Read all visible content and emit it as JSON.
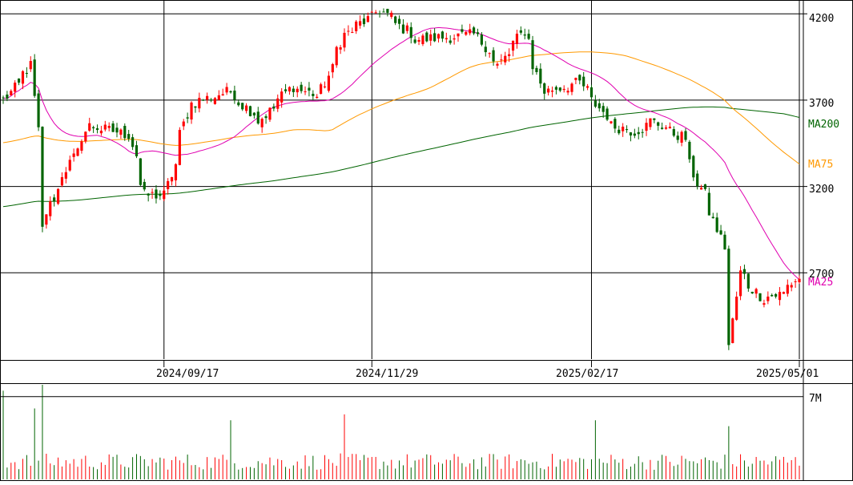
{
  "chart_data": [
    {
      "type": "candlestick",
      "title": "",
      "x_tick_labels": [
        "2024/09/17",
        "2024/11/29",
        "2025/02/17",
        "2025/05/01"
      ],
      "y_tick_labels": [
        "4200",
        "3700",
        "3200",
        "2700"
      ],
      "ylim": [
        2200,
        4280
      ],
      "grid": true,
      "colors": {
        "up": "#ff0000",
        "down": "#006400",
        "ma25": "#e000b0",
        "ma75": "#ff9900",
        "ma200": "#006400"
      },
      "ohlc_anchors": [
        {
          "date": "2024-07-22",
          "close": 3700
        },
        {
          "date": "2024-07-31",
          "close": 3900
        },
        {
          "date": "2024-08-05",
          "close": 2950
        },
        {
          "date": "2024-08-06",
          "close": 3050
        },
        {
          "date": "2024-08-09",
          "close": 3180
        },
        {
          "date": "2024-08-21",
          "close": 3550
        },
        {
          "date": "2024-09-04",
          "close": 3500
        },
        {
          "date": "2024-09-10",
          "close": 3150
        },
        {
          "date": "2024-09-17",
          "close": 3150
        },
        {
          "date": "2024-09-26",
          "close": 3680
        },
        {
          "date": "2024-10-10",
          "close": 3750
        },
        {
          "date": "2024-10-21",
          "close": 3580
        },
        {
          "date": "2024-11-01",
          "close": 3780
        },
        {
          "date": "2024-11-11",
          "close": 3720
        },
        {
          "date": "2024-11-20",
          "close": 4080
        },
        {
          "date": "2024-12-03",
          "close": 4220
        },
        {
          "date": "2024-12-16",
          "close": 4050
        },
        {
          "date": "2025-01-06",
          "close": 4080
        },
        {
          "date": "2025-01-14",
          "close": 3900
        },
        {
          "date": "2025-01-23",
          "close": 4100
        },
        {
          "date": "2025-01-30",
          "close": 3750
        },
        {
          "date": "2025-02-12",
          "close": 3800
        },
        {
          "date": "2025-02-24",
          "close": 3550
        },
        {
          "date": "2025-03-04",
          "close": 3520
        },
        {
          "date": "2025-03-10",
          "close": 3580
        },
        {
          "date": "2025-03-21",
          "close": 3480
        },
        {
          "date": "2025-03-26",
          "close": 3220
        },
        {
          "date": "2025-03-31",
          "close": 3050
        },
        {
          "date": "2025-04-04",
          "close": 2850
        },
        {
          "date": "2025-04-07",
          "close": 2280
        },
        {
          "date": "2025-04-10",
          "close": 2700
        },
        {
          "date": "2025-04-18",
          "close": 2550
        },
        {
          "date": "2025-04-25",
          "close": 2580
        },
        {
          "date": "2025-05-01",
          "close": 2670
        }
      ],
      "moving_averages": [
        {
          "name": "MA25",
          "end_value": 2660
        },
        {
          "name": "MA75",
          "end_value": 3330
        },
        {
          "name": "MA200",
          "end_value": 3600
        }
      ]
    },
    {
      "type": "bar",
      "title": "",
      "series": [
        {
          "name": "",
          "values": "per trading day, aligned with price chart"
        }
      ],
      "y_tick_labels": [
        "7M"
      ],
      "ylim": [
        0,
        8000000
      ],
      "notable_values": [
        {
          "date": "2024-07-22",
          "volume": 7500000
        },
        {
          "date": "2024-08-05",
          "volume": 8000000
        },
        {
          "date": "2024-08-01",
          "volume": 6000000
        },
        {
          "date": "2024-10-10",
          "volume": 5000000
        },
        {
          "date": "2024-11-20",
          "volume": 5500000
        },
        {
          "date": "2025-02-18",
          "volume": 5000000
        },
        {
          "date": "2025-04-07",
          "volume": 4500000
        }
      ]
    }
  ]
}
